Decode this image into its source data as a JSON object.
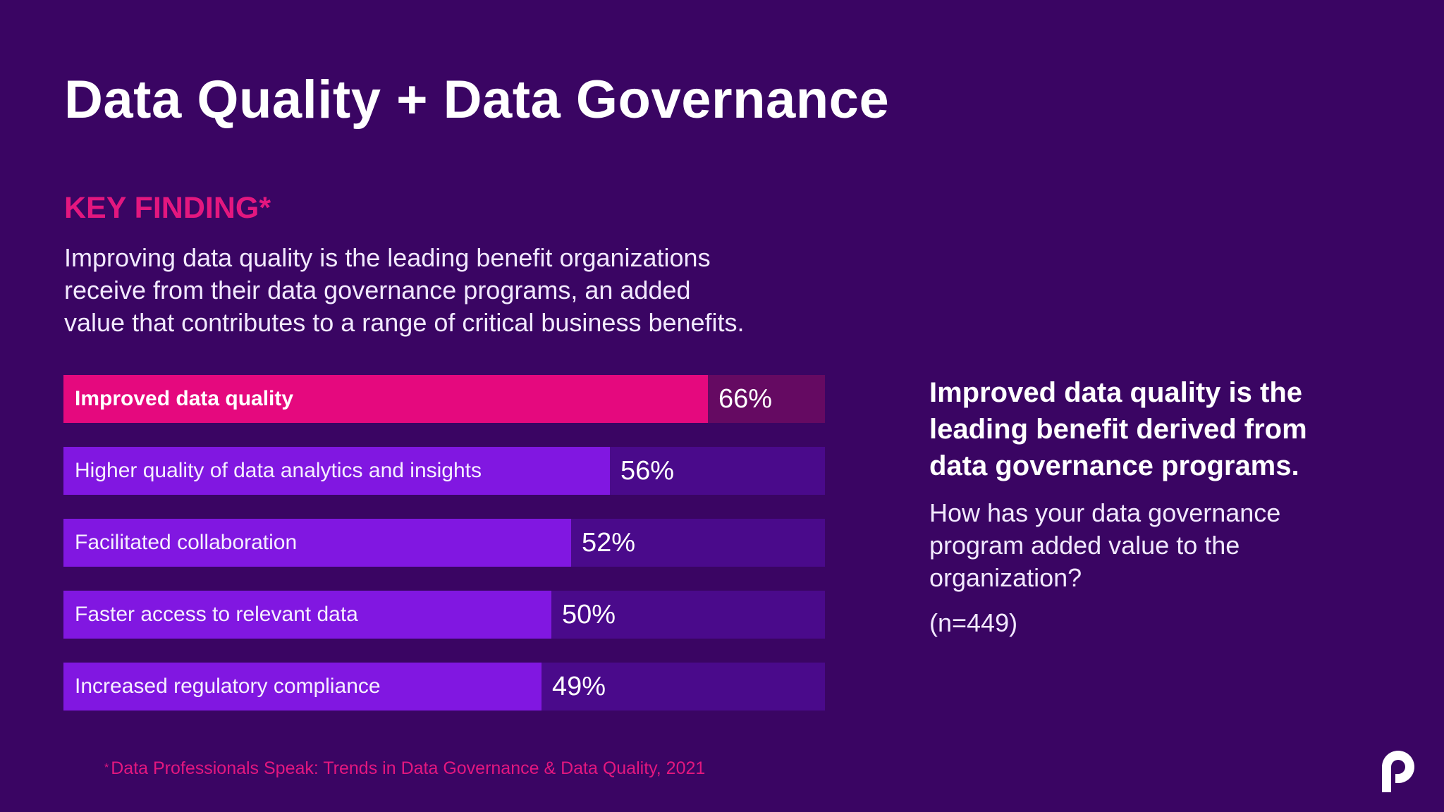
{
  "slide": {
    "title": "Data Quality + Data Governance",
    "kicker": "KEY FINDING*",
    "summary_lines": [
      "Improving data quality is the leading benefit organizations",
      "receive from their data governance programs, an added",
      "value that contributes to a range of critical business benefits."
    ]
  },
  "chart_data": {
    "type": "bar",
    "categories": [
      "Improved data quality",
      "Higher quality of data analytics and insights",
      "Facilitated collaboration",
      "Faster access to relevant data",
      "Increased regulatory compliance"
    ],
    "values": [
      66,
      56,
      52,
      50,
      49
    ],
    "value_labels": [
      "66%",
      "56%",
      "52%",
      "50%",
      "49%"
    ],
    "unit": "%",
    "orientation": "horizontal",
    "xlim": [
      0,
      78
    ],
    "highlighted_category": "Improved data quality",
    "colors": {
      "highlight_bar": "#e5097e",
      "highlight_track": "#650a62",
      "bar": "#8117e1",
      "track": "#4a0a8b"
    }
  },
  "right_panel": {
    "headline_lines": [
      "Improved data quality is the",
      "leading benefit derived from",
      "data governance programs."
    ],
    "question_lines": [
      "How has your data governance",
      "program added value to the",
      "organization?"
    ],
    "sample": "(n=449)"
  },
  "footnote": {
    "marker": "*",
    "text": "Data Professionals Speak:  Trends in Data Governance & Data Quality, 2021"
  },
  "brand": {
    "logo_icon": "p-logo-icon"
  },
  "theme": {
    "background": "#3a0563",
    "accent": "#e3177f",
    "text": "#ffffff"
  }
}
